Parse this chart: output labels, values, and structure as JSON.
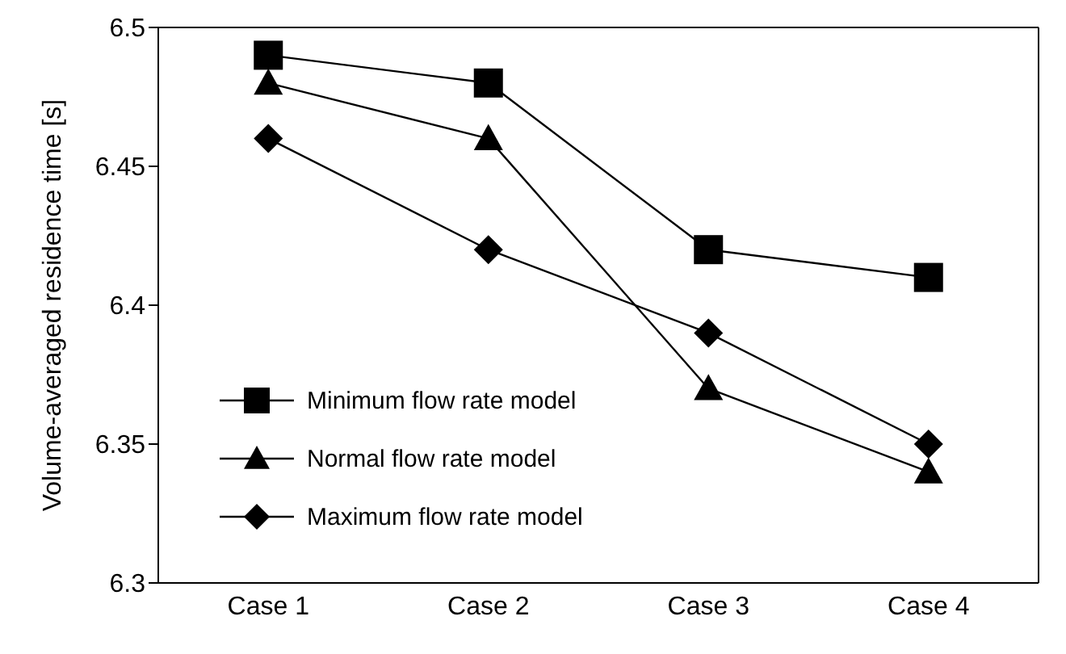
{
  "chart_data": {
    "type": "line",
    "ylabel": "Volume-averaged residence time [s]",
    "categories": [
      "Case 1",
      "Case 2",
      "Case 3",
      "Case 4"
    ],
    "series": [
      {
        "name": "Minimum flow rate model",
        "color": "#000000",
        "marker": "square",
        "values": [
          6.49,
          6.48,
          6.42,
          6.41
        ]
      },
      {
        "name": "Normal flow rate model",
        "color": "#000000",
        "marker": "triangle",
        "values": [
          6.48,
          6.46,
          6.37,
          6.34
        ]
      },
      {
        "name": "Maximum flow rate model",
        "color": "#000000",
        "marker": "diamond",
        "values": [
          6.46,
          6.42,
          6.39,
          6.35
        ]
      }
    ],
    "ylim": [
      6.3,
      6.5
    ],
    "yticks": [
      6.3,
      6.35,
      6.4,
      6.45,
      6.5
    ],
    "grid": false,
    "legend": "bottom left",
    "line_style": "solid"
  }
}
